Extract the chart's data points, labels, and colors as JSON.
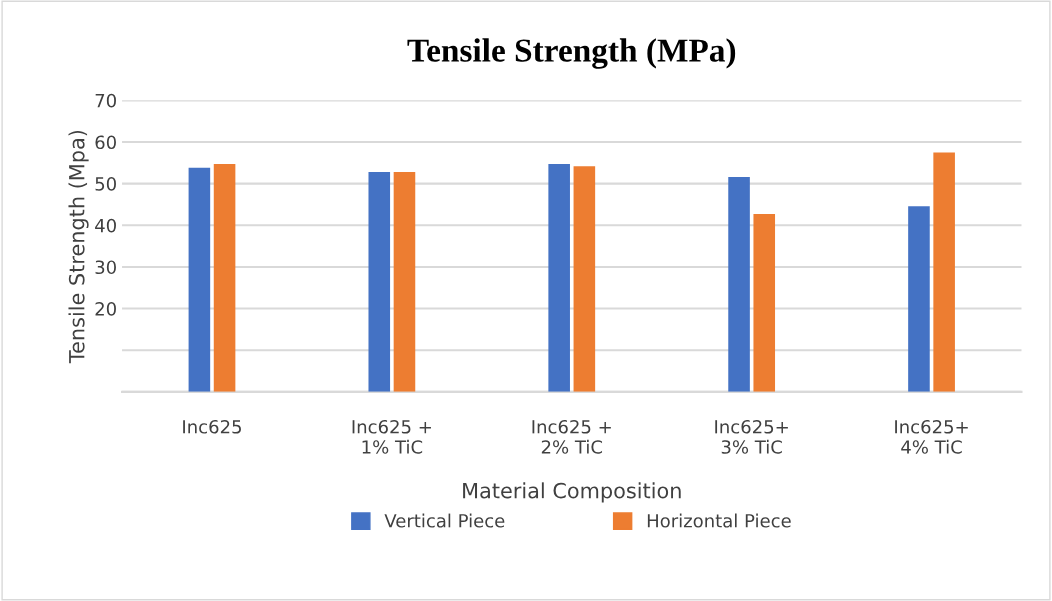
{
  "chart_data": {
    "type": "bar",
    "title": "Tensile Strength (MPa)",
    "xlabel": "Material Composition",
    "ylabel": "Tensile Strength (Mpa)",
    "categories": [
      "Inc625",
      "Inc625 +\n1% TiC",
      "Inc625 +\n2% TiC",
      "Inc625+\n3% TiC",
      "Inc625+\n4% TiC"
    ],
    "series": [
      {
        "name": "Vertical Piece",
        "color": "#4472c4",
        "values": [
          53.8,
          52.8,
          54.7,
          51.6,
          44.6
        ]
      },
      {
        "name": "Horizontal Piece",
        "color": "#ed7d31",
        "values": [
          54.7,
          52.8,
          54.2,
          42.7,
          57.5
        ]
      }
    ],
    "ylim": [
      0,
      70
    ],
    "yticks": [
      {
        "value": 0,
        "label": null
      },
      {
        "value": 10,
        "label": null
      },
      20,
      30,
      40,
      50,
      60,
      70
    ],
    "grid": "y",
    "legend": "bottom"
  }
}
